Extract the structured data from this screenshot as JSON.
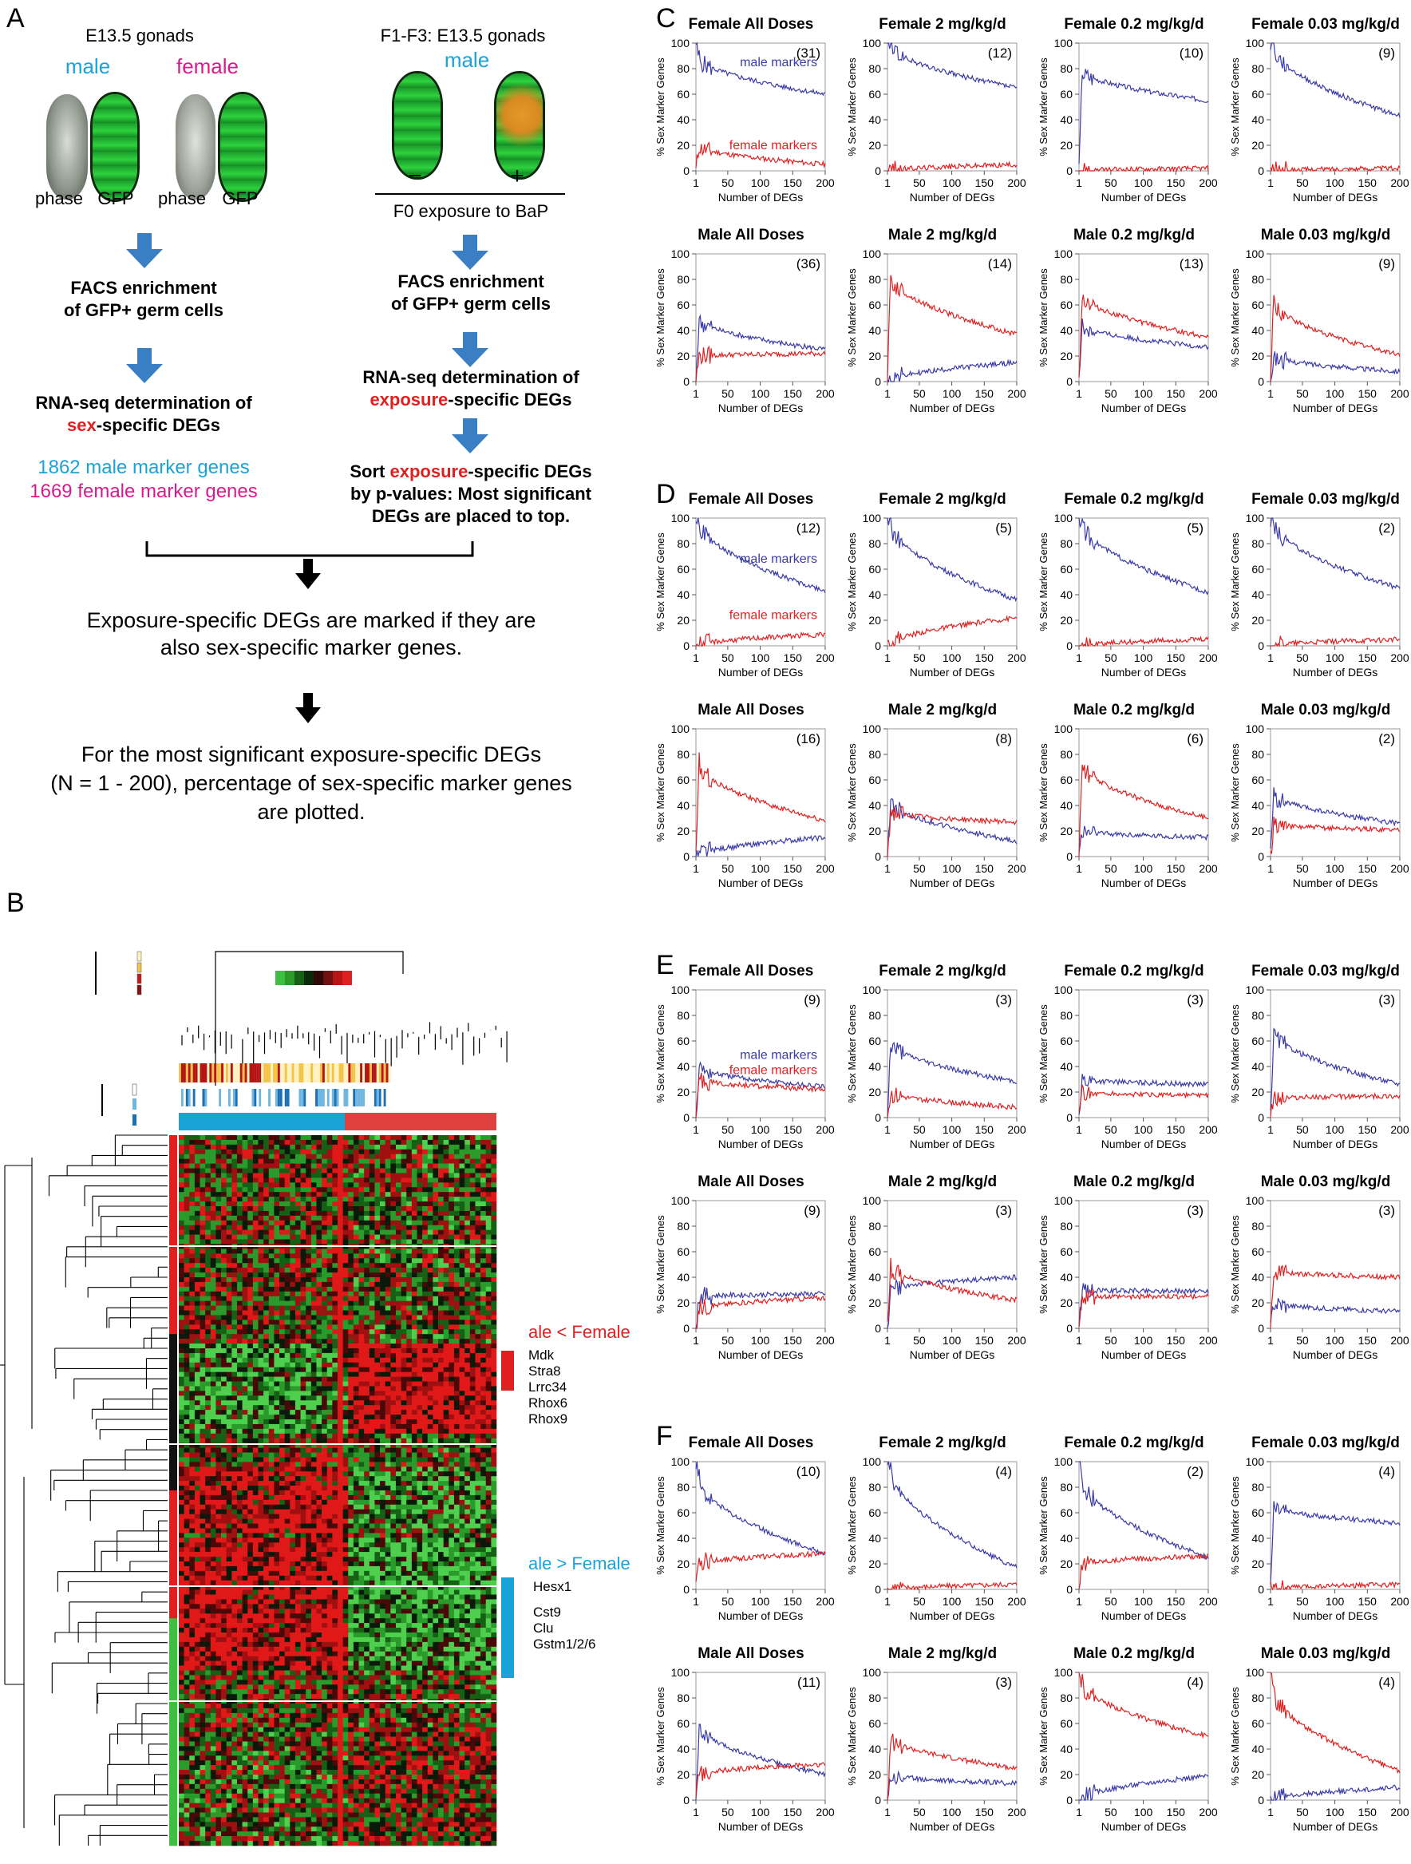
{
  "panel_labels": {
    "A": "A",
    "B": "B",
    "C": "C",
    "D": "D",
    "E": "E",
    "F": "F"
  },
  "panelA": {
    "left_title": "E13.5 gonads",
    "left_male": "male",
    "left_female": "female",
    "phase1": "phase",
    "gfp1": "GFP",
    "phase2": "phase",
    "gfp2": "GFP",
    "right_title": "F1-F3: E13.5 gonads",
    "right_male": "male",
    "minus": "−",
    "plus": "+",
    "f0": "F0 exposure to BaP",
    "facs_l1": "FACS enrichment",
    "facs_l2": "of GFP+ germ cells",
    "facs_r1": "FACS enrichment",
    "facs_r2": "of GFP+ germ cells",
    "rna_l1": "RNA-seq determination of",
    "rna_l2_hl": "sex",
    "rna_l2_rest": "-specific DEGs",
    "rna_r1": "RNA-seq determination of",
    "rna_r2_hl": "exposure",
    "rna_r2_rest": "-specific DEGs",
    "male_markers": "1862 male marker genes",
    "female_markers": "1669 female marker genes",
    "sort_1a": "Sort ",
    "sort_1hl": "exposure",
    "sort_1b": "-specific DEGs",
    "sort_2": "by p-values: Most significant",
    "sort_3": "DEGs are placed to top.",
    "marked_1": "Exposure-specific DEGs are marked if they are",
    "marked_2": "also sex-specific marker genes.",
    "plot_1": "For the most significant exposure-specific DEGs",
    "plot_2": "(N = 1 - 200), percentage of sex-specific marker genes",
    "plot_3": "are plotted."
  },
  "panelB": {
    "label_female": "ale < Female",
    "label_male": "ale > Female",
    "genes_female": [
      "Mdk",
      "Stra8",
      "Lrrc34",
      "Rhox6",
      "Rhox9"
    ],
    "genes_male": [
      "Hesx1",
      "Cst9",
      "Clu",
      "Gstm1/2/6"
    ]
  },
  "colors": {
    "male": "#3a3aa8",
    "female": "#e02020",
    "cyan": "#1aa3d6",
    "magenta": "#d81b8c",
    "blue_arrow": "#3a7fc4"
  },
  "axis": {
    "ylabel": "% Sex Marker Genes",
    "xlabel": "Number of DEGs",
    "yticks": [
      "0",
      "20",
      "40",
      "60",
      "80",
      "100"
    ],
    "xticks": [
      "1",
      "50",
      "100",
      "150",
      "200"
    ]
  },
  "legend_male": "male markers",
  "legend_female": "female markers",
  "chart_data": [
    {
      "panel": "C",
      "type": "line",
      "title": "Female All Doses",
      "n": "(31)",
      "male_end": 60,
      "female_end": 5,
      "male_start": 90,
      "female_start": 20,
      "legend": true
    },
    {
      "panel": "C",
      "type": "line",
      "title": "Female 2 mg/kg/d",
      "n": "(12)",
      "male_end": 65,
      "female_end": 5,
      "male_start": 100,
      "female_start": 0
    },
    {
      "panel": "C",
      "type": "line",
      "title": "Female 0.2 mg/kg/d",
      "n": "(10)",
      "male_end": 55,
      "female_end": 2,
      "male_start": 80,
      "female_start": 0
    },
    {
      "panel": "C",
      "type": "line",
      "title": "Female 0.03 mg/kg/d",
      "n": "(9)",
      "male_end": 43,
      "female_end": 2,
      "male_start": 100,
      "female_start": 0
    },
    {
      "panel": "C",
      "type": "line",
      "title": "Male All Doses",
      "n": "(36)",
      "male_end": 25,
      "female_end": 22,
      "male_start": 50,
      "female_start": 20
    },
    {
      "panel": "C",
      "type": "line",
      "title": "Male 2 mg/kg/d",
      "n": "(14)",
      "male_end": 15,
      "female_end": 37,
      "male_start": 0,
      "female_start": 85
    },
    {
      "panel": "C",
      "type": "line",
      "title": "Male 0.2 mg/kg/d",
      "n": "(13)",
      "male_end": 27,
      "female_end": 35,
      "male_start": 45,
      "female_start": 70
    },
    {
      "panel": "C",
      "type": "line",
      "title": "Male 0.03 mg/kg/d",
      "n": "(9)",
      "male_end": 8,
      "female_end": 21,
      "male_start": 20,
      "female_start": 65
    },
    {
      "panel": "D",
      "type": "line",
      "title": "Female All Doses",
      "n": "(12)",
      "male_end": 43,
      "female_end": 9,
      "male_start": 100,
      "female_start": 0,
      "legend": true
    },
    {
      "panel": "D",
      "type": "line",
      "title": "Female 2 mg/kg/d",
      "n": "(5)",
      "male_end": 36,
      "female_end": 22,
      "male_start": 100,
      "female_start": 0
    },
    {
      "panel": "D",
      "type": "line",
      "title": "Female 0.2 mg/kg/d",
      "n": "(5)",
      "male_end": 42,
      "female_end": 5,
      "male_start": 100,
      "female_start": 0
    },
    {
      "panel": "D",
      "type": "line",
      "title": "Female 0.03 mg/kg/d",
      "n": "(2)",
      "male_end": 45,
      "female_end": 5,
      "male_start": 100,
      "female_start": 0
    },
    {
      "panel": "D",
      "type": "line",
      "title": "Male All Doses",
      "n": "(16)",
      "male_end": 15,
      "female_end": 28,
      "male_start": 0,
      "female_start": 75
    },
    {
      "panel": "D",
      "type": "line",
      "title": "Male 2 mg/kg/d",
      "n": "(8)",
      "male_end": 12,
      "female_end": 27,
      "male_start": 45,
      "female_start": 35
    },
    {
      "panel": "D",
      "type": "line",
      "title": "Male 0.2 mg/kg/d",
      "n": "(6)",
      "male_end": 15,
      "female_end": 30,
      "male_start": 20,
      "female_start": 75
    },
    {
      "panel": "D",
      "type": "line",
      "title": "Male 0.03 mg/kg/d",
      "n": "(2)",
      "male_end": 26,
      "female_end": 21,
      "male_start": 50,
      "female_start": 25
    },
    {
      "panel": "E",
      "type": "line",
      "title": "Female All Doses",
      "n": "(9)",
      "male_end": 24,
      "female_end": 22,
      "male_start": 40,
      "female_start": 30,
      "legend": true
    },
    {
      "panel": "E",
      "type": "line",
      "title": "Female 2 mg/kg/d",
      "n": "(3)",
      "male_end": 28,
      "female_end": 8,
      "male_start": 60,
      "female_start": 20
    },
    {
      "panel": "E",
      "type": "line",
      "title": "Female 0.2 mg/kg/d",
      "n": "(3)",
      "male_end": 26,
      "female_end": 17,
      "male_start": 30,
      "female_start": 20
    },
    {
      "panel": "E",
      "type": "line",
      "title": "Female 0.03 mg/kg/d",
      "n": "(3)",
      "male_end": 26,
      "female_end": 17,
      "male_start": 70,
      "female_start": 15
    },
    {
      "panel": "E",
      "type": "line",
      "title": "Male All Doses",
      "n": "(9)",
      "male_end": 27,
      "female_end": 24,
      "male_start": 25,
      "female_start": 15
    },
    {
      "panel": "E",
      "type": "line",
      "title": "Male 2 mg/kg/d",
      "n": "(3)",
      "male_end": 40,
      "female_end": 22,
      "male_start": 30,
      "female_start": 50
    },
    {
      "panel": "E",
      "type": "line",
      "title": "Male 0.2 mg/kg/d",
      "n": "(3)",
      "male_end": 29,
      "female_end": 25,
      "male_start": 30,
      "female_start": 25
    },
    {
      "panel": "E",
      "type": "line",
      "title": "Male 0.03 mg/kg/d",
      "n": "(3)",
      "male_end": 13,
      "female_end": 40,
      "male_start": 20,
      "female_start": 45
    },
    {
      "panel": "F",
      "type": "line",
      "title": "Female All Doses",
      "n": "(10)",
      "male_end": 28,
      "female_end": 28,
      "male_start": 90,
      "female_start": 20
    },
    {
      "panel": "F",
      "type": "line",
      "title": "Female 2 mg/kg/d",
      "n": "(4)",
      "male_end": 17,
      "female_end": 4,
      "male_start": 100,
      "female_start": 0
    },
    {
      "panel": "F",
      "type": "line",
      "title": "Female 0.2 mg/kg/d",
      "n": "(2)",
      "male_end": 25,
      "female_end": 26,
      "male_start": 90,
      "female_start": 20
    },
    {
      "panel": "F",
      "type": "line",
      "title": "Female 0.03 mg/kg/d",
      "n": "(4)",
      "male_end": 52,
      "female_end": 4,
      "male_start": 65,
      "female_start": 0
    },
    {
      "panel": "F",
      "type": "line",
      "title": "Male All Doses",
      "n": "(11)",
      "male_end": 20,
      "female_end": 28,
      "male_start": 60,
      "female_start": 20
    },
    {
      "panel": "F",
      "type": "line",
      "title": "Male 2 mg/kg/d",
      "n": "(3)",
      "male_end": 13,
      "female_end": 25,
      "male_start": 20,
      "female_start": 50
    },
    {
      "panel": "F",
      "type": "line",
      "title": "Male 0.2 mg/kg/d",
      "n": "(4)",
      "male_end": 19,
      "female_end": 50,
      "male_start": 0,
      "female_start": 95
    },
    {
      "panel": "F",
      "type": "line",
      "title": "Male 0.03 mg/kg/d",
      "n": "(4)",
      "male_end": 10,
      "female_end": 23,
      "male_start": 0,
      "female_start": 90
    }
  ]
}
